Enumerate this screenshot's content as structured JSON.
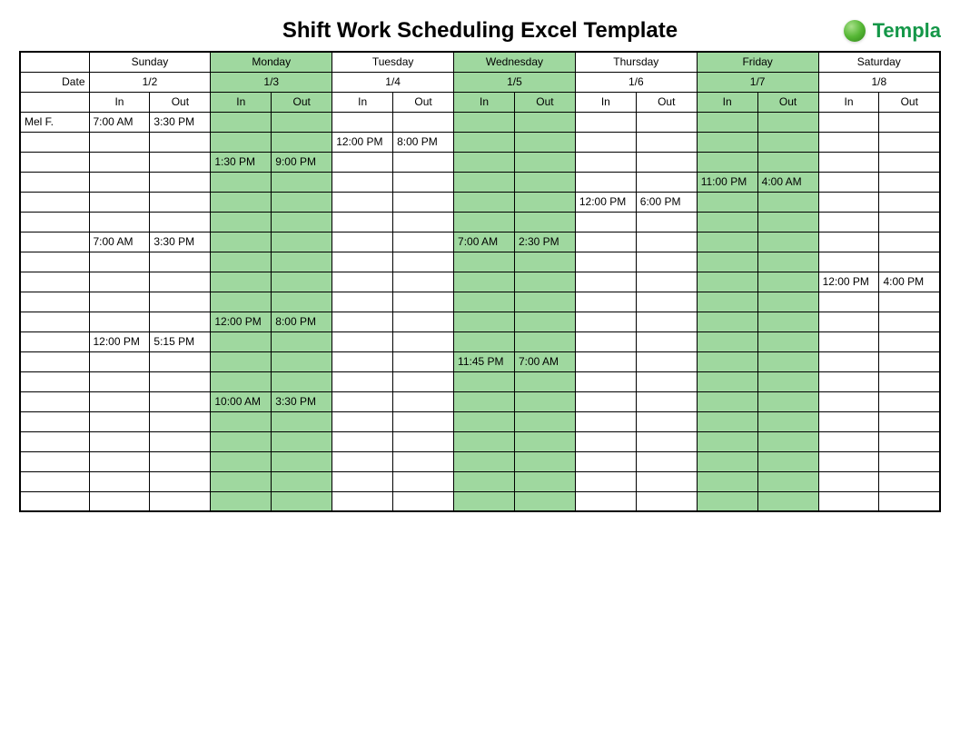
{
  "title": "Shift Work Scheduling Excel Template",
  "logo_text": "Templa",
  "date_label": "Date",
  "io_labels": {
    "in": "In",
    "out": "Out"
  },
  "days": [
    {
      "name": "Sunday",
      "date": "1/2"
    },
    {
      "name": "Monday",
      "date": "1/3"
    },
    {
      "name": "Tuesday",
      "date": "1/4"
    },
    {
      "name": "Wednesday",
      "date": "1/5"
    },
    {
      "name": "Thursday",
      "date": "1/6"
    },
    {
      "name": "Friday",
      "date": "1/7"
    },
    {
      "name": "Saturday",
      "date": "1/8"
    }
  ],
  "highlight_days": [
    1,
    3,
    5
  ],
  "rows": [
    {
      "name": "Mel F.",
      "cells": [
        [
          "7:00 AM",
          "3:30 PM"
        ],
        [
          "",
          ""
        ],
        [
          "",
          ""
        ],
        [
          "",
          ""
        ],
        [
          "",
          ""
        ],
        [
          "",
          ""
        ],
        [
          "",
          ""
        ]
      ]
    },
    {
      "name": "",
      "cells": [
        [
          "",
          ""
        ],
        [
          "",
          ""
        ],
        [
          "12:00 PM",
          "8:00 PM"
        ],
        [
          "",
          ""
        ],
        [
          "",
          ""
        ],
        [
          "",
          ""
        ],
        [
          "",
          ""
        ]
      ]
    },
    {
      "name": "",
      "cells": [
        [
          "",
          ""
        ],
        [
          "1:30 PM",
          "9:00 PM"
        ],
        [
          "",
          ""
        ],
        [
          "",
          ""
        ],
        [
          "",
          ""
        ],
        [
          "",
          ""
        ],
        [
          "",
          ""
        ]
      ]
    },
    {
      "name": "",
      "cells": [
        [
          "",
          ""
        ],
        [
          "",
          ""
        ],
        [
          "",
          ""
        ],
        [
          "",
          ""
        ],
        [
          "",
          ""
        ],
        [
          "11:00 PM",
          "4:00 AM"
        ],
        [
          "",
          ""
        ]
      ]
    },
    {
      "name": "",
      "cells": [
        [
          "",
          ""
        ],
        [
          "",
          ""
        ],
        [
          "",
          ""
        ],
        [
          "",
          ""
        ],
        [
          "12:00 PM",
          "6:00 PM"
        ],
        [
          "",
          ""
        ],
        [
          "",
          ""
        ]
      ]
    },
    {
      "name": "",
      "cells": [
        [
          "",
          ""
        ],
        [
          "",
          ""
        ],
        [
          "",
          ""
        ],
        [
          "",
          ""
        ],
        [
          "",
          ""
        ],
        [
          "",
          ""
        ],
        [
          "",
          ""
        ]
      ]
    },
    {
      "name": "",
      "cells": [
        [
          "7:00 AM",
          "3:30 PM"
        ],
        [
          "",
          ""
        ],
        [
          "",
          ""
        ],
        [
          "7:00 AM",
          "2:30 PM"
        ],
        [
          "",
          ""
        ],
        [
          "",
          ""
        ],
        [
          "",
          ""
        ]
      ]
    },
    {
      "name": "",
      "cells": [
        [
          "",
          ""
        ],
        [
          "",
          ""
        ],
        [
          "",
          ""
        ],
        [
          "",
          ""
        ],
        [
          "",
          ""
        ],
        [
          "",
          ""
        ],
        [
          "",
          ""
        ]
      ]
    },
    {
      "name": "",
      "cells": [
        [
          "",
          ""
        ],
        [
          "",
          ""
        ],
        [
          "",
          ""
        ],
        [
          "",
          ""
        ],
        [
          "",
          ""
        ],
        [
          "",
          ""
        ],
        [
          "12:00 PM",
          "4:00 PM"
        ]
      ]
    },
    {
      "name": "",
      "cells": [
        [
          "",
          ""
        ],
        [
          "",
          ""
        ],
        [
          "",
          ""
        ],
        [
          "",
          ""
        ],
        [
          "",
          ""
        ],
        [
          "",
          ""
        ],
        [
          "",
          ""
        ]
      ]
    },
    {
      "name": "",
      "cells": [
        [
          "",
          ""
        ],
        [
          "12:00 PM",
          "8:00 PM"
        ],
        [
          "",
          ""
        ],
        [
          "",
          ""
        ],
        [
          "",
          ""
        ],
        [
          "",
          ""
        ],
        [
          "",
          ""
        ]
      ]
    },
    {
      "name": "",
      "cells": [
        [
          "12:00 PM",
          "5:15 PM"
        ],
        [
          "",
          ""
        ],
        [
          "",
          ""
        ],
        [
          "",
          ""
        ],
        [
          "",
          ""
        ],
        [
          "",
          ""
        ],
        [
          "",
          ""
        ]
      ]
    },
    {
      "name": "",
      "cells": [
        [
          "",
          ""
        ],
        [
          "",
          ""
        ],
        [
          "",
          ""
        ],
        [
          "11:45 PM",
          "7:00 AM"
        ],
        [
          "",
          ""
        ],
        [
          "",
          ""
        ],
        [
          "",
          ""
        ]
      ]
    },
    {
      "name": "",
      "cells": [
        [
          "",
          ""
        ],
        [
          "",
          ""
        ],
        [
          "",
          ""
        ],
        [
          "",
          ""
        ],
        [
          "",
          ""
        ],
        [
          "",
          ""
        ],
        [
          "",
          ""
        ]
      ]
    },
    {
      "name": "",
      "cells": [
        [
          "",
          ""
        ],
        [
          "10:00 AM",
          "3:30 PM"
        ],
        [
          "",
          ""
        ],
        [
          "",
          ""
        ],
        [
          "",
          ""
        ],
        [
          "",
          ""
        ],
        [
          "",
          ""
        ]
      ]
    },
    {
      "name": "",
      "cells": [
        [
          "",
          ""
        ],
        [
          "",
          ""
        ],
        [
          "",
          ""
        ],
        [
          "",
          ""
        ],
        [
          "",
          ""
        ],
        [
          "",
          ""
        ],
        [
          "",
          ""
        ]
      ]
    },
    {
      "name": "",
      "cells": [
        [
          "",
          ""
        ],
        [
          "",
          ""
        ],
        [
          "",
          ""
        ],
        [
          "",
          ""
        ],
        [
          "",
          ""
        ],
        [
          "",
          ""
        ],
        [
          "",
          ""
        ]
      ]
    },
    {
      "name": "",
      "cells": [
        [
          "",
          ""
        ],
        [
          "",
          ""
        ],
        [
          "",
          ""
        ],
        [
          "",
          ""
        ],
        [
          "",
          ""
        ],
        [
          "",
          ""
        ],
        [
          "",
          ""
        ]
      ]
    },
    {
      "name": "",
      "cells": [
        [
          "",
          ""
        ],
        [
          "",
          ""
        ],
        [
          "",
          ""
        ],
        [
          "",
          ""
        ],
        [
          "",
          ""
        ],
        [
          "",
          ""
        ],
        [
          "",
          ""
        ]
      ]
    },
    {
      "name": "",
      "cells": [
        [
          "",
          ""
        ],
        [
          "",
          ""
        ],
        [
          "",
          ""
        ],
        [
          "",
          ""
        ],
        [
          "",
          ""
        ],
        [
          "",
          ""
        ],
        [
          "",
          ""
        ]
      ]
    }
  ],
  "colors": {
    "highlight_fill": "#9fd89f",
    "border": "#000000",
    "text": "#000000",
    "logo_text": "#149748"
  }
}
